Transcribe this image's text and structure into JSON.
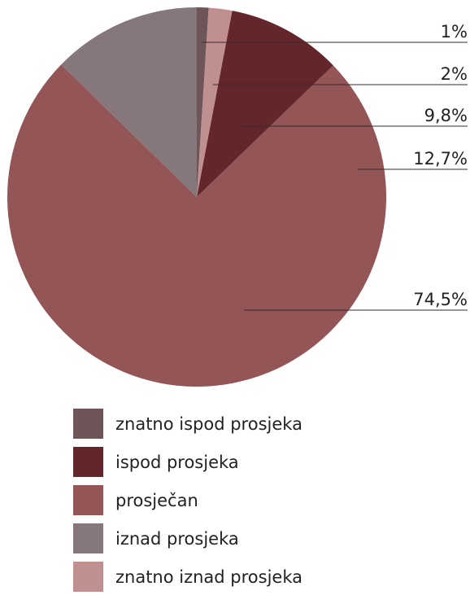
{
  "chart_data": {
    "type": "pie",
    "categories": [
      "znatno ispod prosjeka",
      "ispod prosjeka",
      "prosječan",
      "iznad prosjeka",
      "znatno iznad prosjeka"
    ],
    "values": [
      1,
      9.8,
      74.5,
      12.7,
      2
    ],
    "value_labels": [
      "1%",
      "9,8%",
      "74,5%",
      "12,7%",
      "2%"
    ],
    "colors": [
      "#6e5557",
      "#62262b",
      "#935556",
      "#85777a",
      "#c09090"
    ],
    "legend": "bottom"
  }
}
